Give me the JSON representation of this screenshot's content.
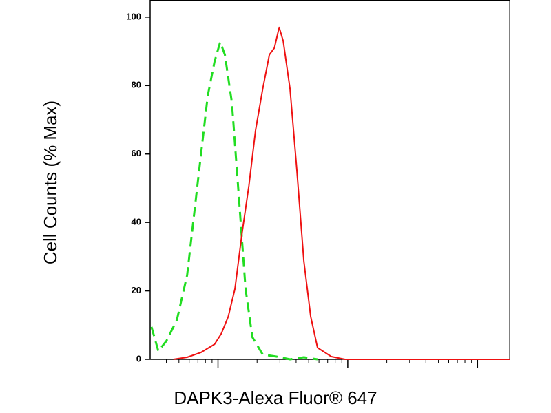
{
  "chart_data": {
    "type": "line",
    "x_label": "DAPK3-Alexa Fluor® 647",
    "y_label": "Cell Counts (% Max)",
    "xscale": "log",
    "xlim": [
      30,
      17700
    ],
    "xticks": [
      100,
      1000,
      10000
    ],
    "xminor_ticks": [
      40,
      50,
      60,
      70,
      80,
      90,
      200,
      300,
      400,
      500,
      600,
      700,
      800,
      900,
      2000,
      3000,
      4000,
      5000,
      6000,
      7000,
      8000,
      9000
    ],
    "ylim": [
      0,
      105
    ],
    "yticks": [
      0,
      20,
      40,
      60,
      80,
      100
    ],
    "series": [
      {
        "color": "#22dd22",
        "dash": "dashed",
        "x": [
          30.7,
          34.7,
          40.1,
          48.2,
          57.8,
          69.4,
          83.3,
          94.1,
          104,
          113,
          128,
          144,
          163,
          184,
          221,
          282,
          359,
          459,
          585
        ],
        "values": [
          9.5,
          2.4,
          5.4,
          11.5,
          24.6,
          50.8,
          77,
          87,
          92.7,
          89,
          75,
          48.8,
          20.6,
          6.5,
          1.4,
          0.8,
          0,
          0.6,
          0
        ]
      },
      {
        "color": "#ee1111",
        "dash": "solid",
        "x": [
          45.3,
          57.8,
          73.8,
          94.1,
          106,
          120,
          135,
          153,
          173,
          195,
          221,
          249,
          272,
          296,
          318,
          359,
          406,
          459,
          518,
          585,
          747,
          953,
          3220,
          17700
        ],
        "values": [
          0,
          0.6,
          2,
          4.4,
          7.5,
          12.5,
          20.6,
          36.7,
          50.8,
          67,
          79,
          89,
          91,
          97,
          93,
          79,
          55,
          28.6,
          12.5,
          3.4,
          0.8,
          0,
          0,
          0
        ]
      }
    ]
  }
}
